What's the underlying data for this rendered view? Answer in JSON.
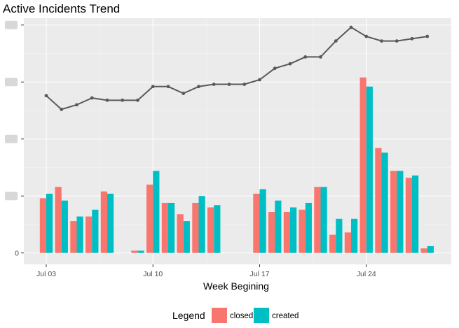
{
  "chart_data": {
    "type": "bar",
    "title": "Active Incidents Trend",
    "xlabel": "Week Begining",
    "ylabel": "",
    "x_ticks": [
      "Jul 03",
      "Jul 10",
      "Jul 17",
      "Jul 24"
    ],
    "y_ticks": [
      "0"
    ],
    "legend": {
      "title": "Legend",
      "position": "bottom",
      "entries": [
        {
          "name": "closed",
          "color": "#f8766d"
        },
        {
          "name": "created",
          "color": "#00bfc4"
        }
      ]
    },
    "categories": [
      "Jul 03",
      "Jul 04",
      "Jul 05",
      "Jul 06",
      "Jul 07",
      "Jul 08",
      "Jul 09",
      "Jul 10",
      "Jul 11",
      "Jul 12",
      "Jul 13",
      "Jul 14",
      "Jul 15",
      "Jul 16",
      "Jul 17",
      "Jul 18",
      "Jul 19",
      "Jul 20",
      "Jul 21",
      "Jul 22",
      "Jul 23",
      "Jul 24",
      "Jul 25",
      "Jul 26",
      "Jul 27",
      "Jul 28"
    ],
    "series": [
      {
        "name": "closed",
        "color": "#f8766d",
        "values": [
          2.4,
          2.9,
          1.4,
          1.6,
          2.7,
          0,
          0.1,
          3.0,
          2.2,
          1.7,
          2.2,
          2.0,
          0,
          0,
          2.6,
          1.8,
          1.8,
          1.9,
          2.9,
          0.8,
          0.9,
          7.7,
          4.6,
          3.6,
          3.3,
          0.2
        ]
      },
      {
        "name": "created",
        "color": "#00bfc4",
        "values": [
          2.6,
          2.3,
          1.6,
          1.9,
          2.6,
          0,
          0.1,
          3.6,
          2.2,
          1.4,
          2.5,
          2.1,
          0,
          0,
          2.8,
          2.3,
          2.0,
          2.2,
          2.9,
          1.5,
          1.5,
          7.3,
          4.4,
          3.6,
          3.4,
          0.3
        ]
      },
      {
        "name": "",
        "type": "line",
        "color": "#595959",
        "values": [
          6.9,
          6.3,
          6.5,
          6.8,
          6.7,
          6.7,
          6.7,
          7.3,
          7.3,
          7.0,
          7.3,
          7.4,
          7.4,
          7.4,
          7.6,
          8.1,
          8.3,
          8.6,
          8.6,
          9.3,
          9.9,
          9.5,
          9.3,
          9.3,
          9.4,
          9.5
        ]
      }
    ],
    "ylim": [
      -0.5,
      10.3
    ],
    "y_label_positions": [
      0,
      2.5,
      5,
      7.5,
      10
    ],
    "grid": true,
    "background": "#ebebeb"
  }
}
